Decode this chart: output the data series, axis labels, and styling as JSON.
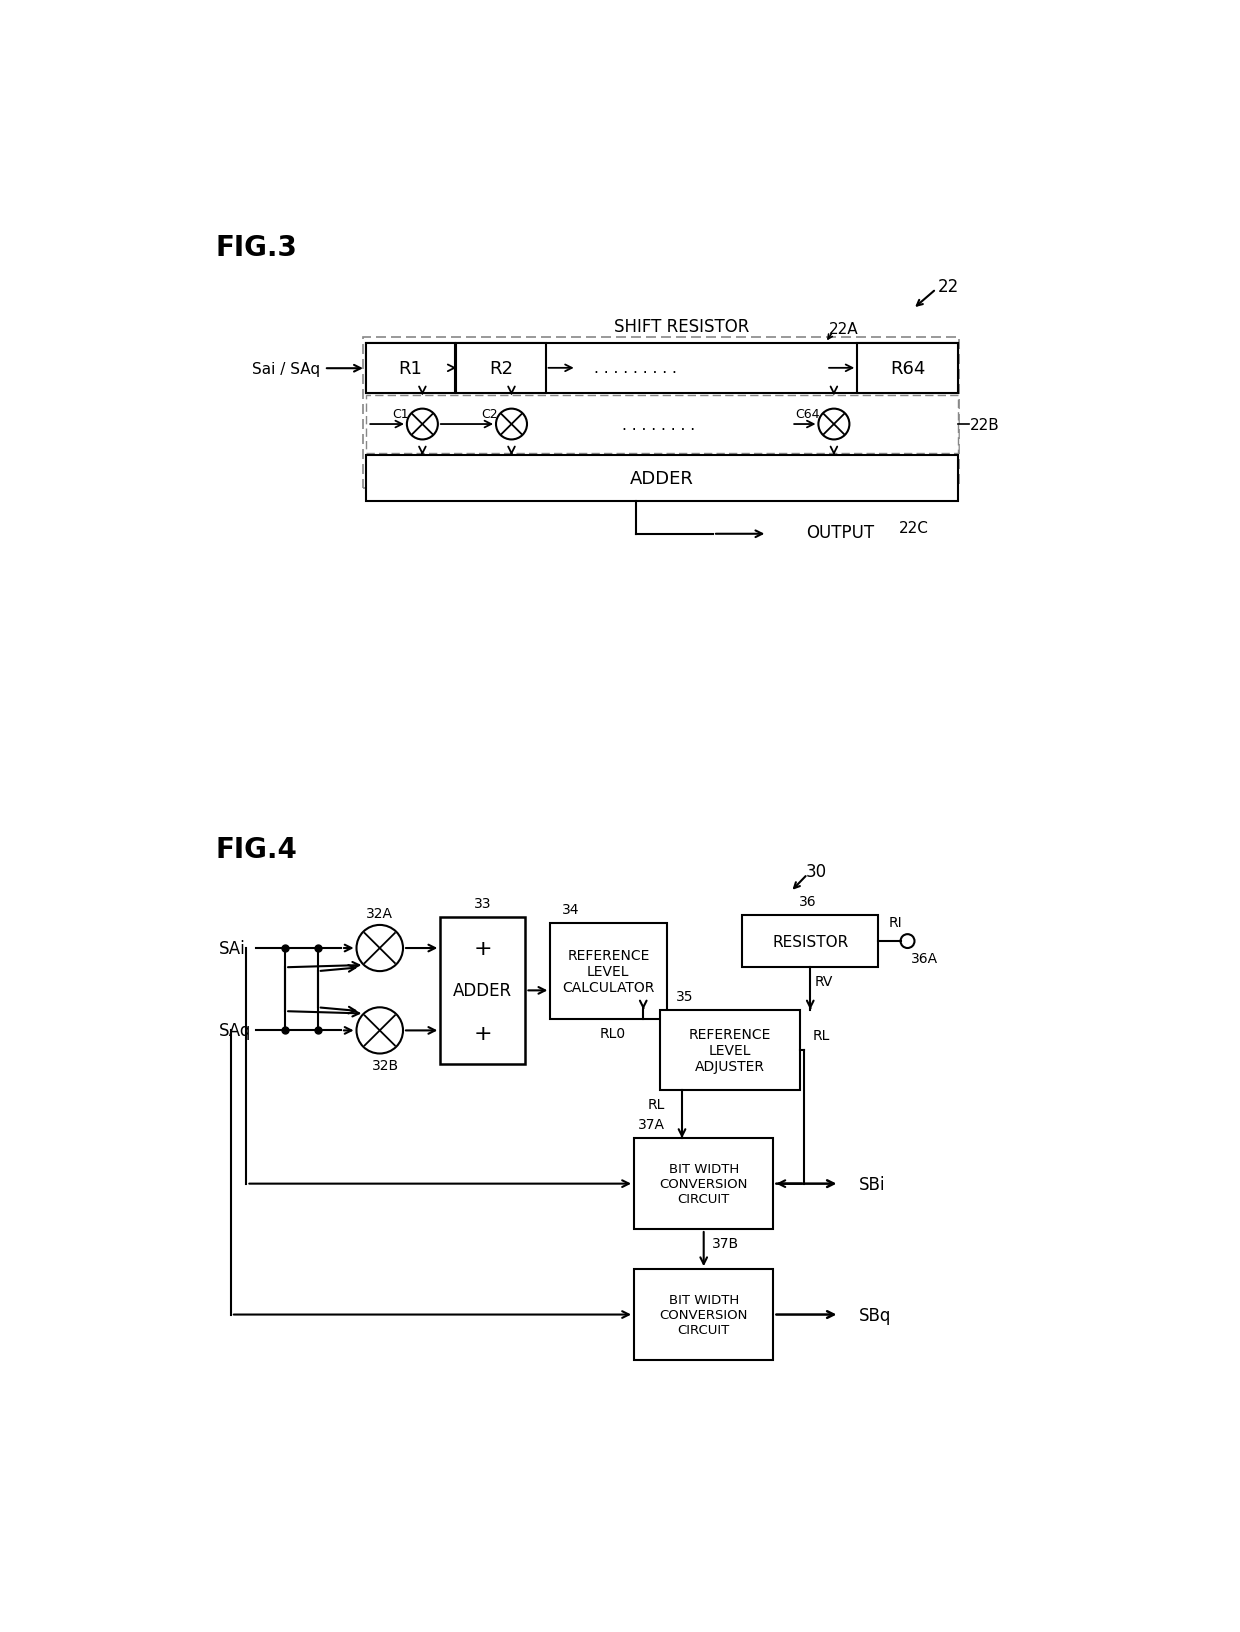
{
  "fig3_label": "FIG.3",
  "fig4_label": "FIG.4",
  "background_color": "#ffffff",
  "fig3": {
    "label_22": "22",
    "label_22A": "22A",
    "label_22B": "22B",
    "label_22C": "22C",
    "label_shift_resistor": "SHIFT RESISTOR",
    "label_input": "Sai / SAq",
    "label_adder": "ADDER",
    "label_output": "OUTPUT",
    "label_r1": "R1",
    "label_r2": "R2",
    "label_r64": "R64",
    "label_c1": "C1",
    "label_c2": "C2",
    "label_c64": "C64",
    "dots_reg": ". . . . . . . . .",
    "dots_mult": ". . . . . . . ."
  },
  "fig4": {
    "label_30": "30",
    "label_32A": "32A",
    "label_32B": "32B",
    "label_33": "33",
    "label_34": "34",
    "label_35": "35",
    "label_36": "36",
    "label_36A": "36A",
    "label_37A": "37A",
    "label_37B": "37B",
    "label_SAi": "SAi",
    "label_SAq": "SAq",
    "label_SBi": "SBi",
    "label_SBq": "SBq",
    "label_RL0": "RL0",
    "label_RV": "RV",
    "label_RI": "RI",
    "label_RL_left": "RL",
    "label_RL_right": "RL",
    "label_adder": "ADDER",
    "label_resistor": "RESISTOR",
    "label_ref_level_calc": "REFERENCE\nLEVEL\nCALCULATOR",
    "label_ref_level_adj": "REFERENCE\nLEVEL\nADJUSTER",
    "label_bwcc_37A": "BIT WIDTH\nCONVERSION\nCIRCUIT",
    "label_bwcc_37B": "BIT WIDTH\nCONVERSION\nCIRCUIT",
    "plus": "+"
  }
}
